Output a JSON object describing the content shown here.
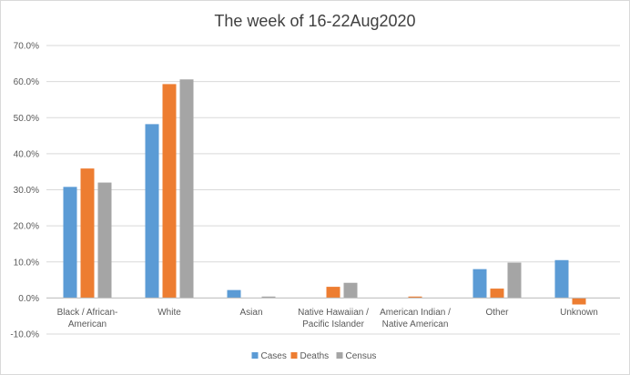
{
  "chart_data": {
    "type": "bar",
    "title": "The week of 16-22Aug2020",
    "xlabel": "",
    "ylabel": "",
    "ylim": [
      -0.1,
      0.7
    ],
    "y_tick_step": 0.1,
    "y_tick_format": "percent_1dp",
    "grid": true,
    "legend_position": "bottom",
    "categories": [
      [
        "Black / African-",
        "American"
      ],
      [
        "White"
      ],
      [
        "Asian"
      ],
      [
        "Native Hawaiian /",
        "Pacific Islander"
      ],
      [
        "American Indian /",
        "Native American"
      ],
      [
        "Other"
      ],
      [
        "Unknown"
      ]
    ],
    "series": [
      {
        "name": "Cases",
        "color": "#5b9bd5",
        "values": [
          0.308,
          0.482,
          0.022,
          0.0,
          0.0,
          0.08,
          0.105
        ]
      },
      {
        "name": "Deaths",
        "color": "#ed7d31",
        "values": [
          0.359,
          0.593,
          0.0,
          0.031,
          0.004,
          0.026,
          -0.018
        ]
      },
      {
        "name": "Census",
        "color": "#a5a5a5",
        "values": [
          0.32,
          0.606,
          0.004,
          0.042,
          0.0,
          0.098,
          0.0
        ]
      }
    ]
  }
}
